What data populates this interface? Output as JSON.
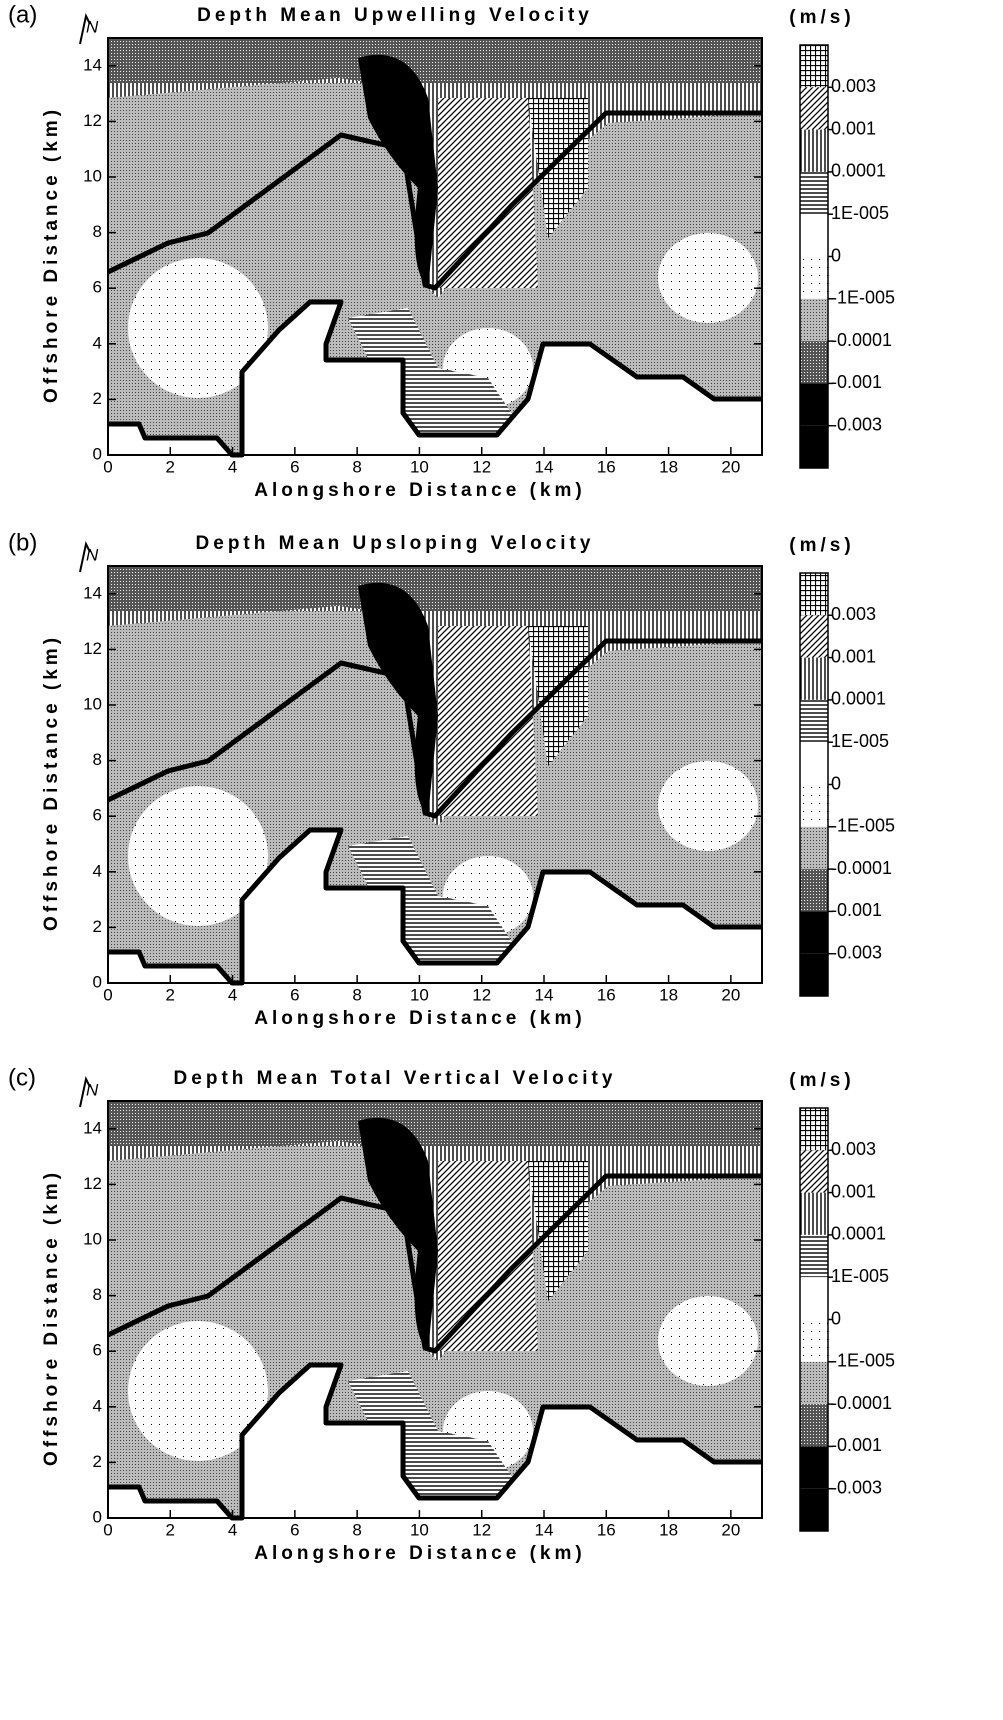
{
  "chart_data": [
    {
      "type": "contour",
      "panel_label": "(a)",
      "title": "Depth Mean Upwelling Velocity",
      "north_label": "N",
      "xlabel": "Alongshore Distance (km)",
      "ylabel": "Offshore Distance (km)",
      "legend_title": "(m/s)",
      "xlim": [
        0,
        21
      ],
      "xticks": [
        0,
        2,
        4,
        6,
        8,
        10,
        12,
        14,
        16,
        18,
        20
      ],
      "ylim": [
        0,
        15
      ],
      "yticks": [
        0,
        2,
        4,
        6,
        8,
        10,
        12,
        14
      ],
      "colorbar_ticks": [
        0.003,
        0.001,
        0.0001,
        {
          "value": 1e-05,
          "label": "1E-005"
        },
        0,
        {
          "value": -1e-05,
          "label": "-1E-005"
        },
        -0.0001,
        -0.001,
        -0.003
      ]
    },
    {
      "type": "contour",
      "panel_label": "(b)",
      "title": "Depth Mean Upsloping Velocity",
      "north_label": "N",
      "xlabel": "Alongshore Distance (km)",
      "ylabel": "Offshore Distance (km)",
      "legend_title": "(m/s)",
      "xlim": [
        0,
        21
      ],
      "xticks": [
        0,
        2,
        4,
        6,
        8,
        10,
        12,
        14,
        16,
        18,
        20
      ],
      "ylim": [
        0,
        15
      ],
      "yticks": [
        0,
        2,
        4,
        6,
        8,
        10,
        12,
        14
      ],
      "colorbar_ticks": [
        0.003,
        0.001,
        0.0001,
        {
          "value": 1e-05,
          "label": "1E-005"
        },
        0,
        {
          "value": -1e-05,
          "label": "-1E-005"
        },
        -0.0001,
        -0.001,
        -0.003
      ]
    },
    {
      "type": "contour",
      "panel_label": "(c)",
      "title": "Depth Mean Total Vertical Velocity",
      "north_label": "N",
      "xlabel": "Alongshore Distance (km)",
      "ylabel": "Offshore Distance (km)",
      "legend_title": "(m/s)",
      "xlim": [
        0,
        21
      ],
      "xticks": [
        0,
        2,
        4,
        6,
        8,
        10,
        12,
        14,
        16,
        18,
        20
      ],
      "ylim": [
        0,
        15
      ],
      "yticks": [
        0,
        2,
        4,
        6,
        8,
        10,
        12,
        14
      ],
      "colorbar_ticks": [
        0.003,
        0.001,
        0.0001,
        {
          "value": 1e-05,
          "label": "1E-005"
        },
        0,
        {
          "value": -1e-05,
          "label": "-1E-005"
        },
        -0.0001,
        -0.001,
        -0.003
      ]
    }
  ]
}
